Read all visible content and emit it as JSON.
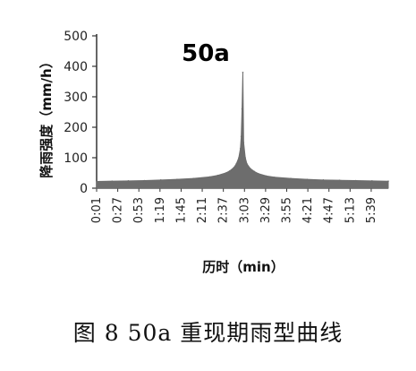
{
  "caption": "图 8 50a 重现期雨型曲线",
  "chart_data": {
    "type": "area",
    "title": "50a",
    "xlabel": "历时（min）",
    "ylabel": "降雨强度（mm/h）",
    "ylim": [
      0,
      500
    ],
    "yticks": [
      0,
      100,
      200,
      300,
      400,
      500
    ],
    "xlim": [
      1,
      360
    ],
    "x_tick_labels": [
      "0:01",
      "0:27",
      "0:53",
      "1:19",
      "1:45",
      "2:11",
      "2:37",
      "3:03",
      "3:29",
      "3:55",
      "4:21",
      "4:47",
      "5:13",
      "5:39"
    ],
    "x_tick_minutes": [
      1,
      27,
      53,
      79,
      105,
      131,
      157,
      183,
      209,
      235,
      261,
      287,
      313,
      339
    ],
    "grid": false,
    "color": "#6d6d6d",
    "series": [
      {
        "x": [
          1,
          20,
          40,
          60,
          80,
          100,
          120,
          140,
          150,
          160,
          165,
          170,
          173,
          176,
          178,
          179,
          180,
          181,
          182,
          184,
          186,
          190,
          195,
          200,
          210,
          220,
          240,
          260,
          280,
          300,
          320,
          340,
          360
        ],
        "values": [
          22,
          23,
          24,
          25,
          27,
          29,
          32,
          37,
          42,
          50,
          57,
          68,
          80,
          100,
          130,
          170,
          260,
          380,
          150,
          100,
          80,
          65,
          55,
          48,
          40,
          36,
          32,
          29,
          27,
          26,
          25,
          24,
          23
        ]
      }
    ]
  }
}
